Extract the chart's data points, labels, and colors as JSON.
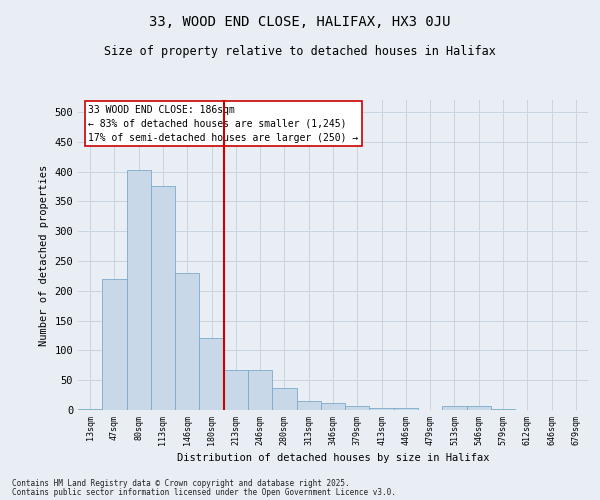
{
  "title": "33, WOOD END CLOSE, HALIFAX, HX3 0JU",
  "subtitle": "Size of property relative to detached houses in Halifax",
  "xlabel": "Distribution of detached houses by size in Halifax",
  "ylabel": "Number of detached properties",
  "bar_values": [
    2,
    220,
    403,
    375,
    230,
    120,
    67,
    67,
    37,
    15,
    12,
    6,
    3,
    3,
    0,
    6,
    6,
    2,
    0,
    0,
    0
  ],
  "bar_labels": [
    "13sqm",
    "47sqm",
    "80sqm",
    "113sqm",
    "146sqm",
    "180sqm",
    "213sqm",
    "246sqm",
    "280sqm",
    "313sqm",
    "346sqm",
    "379sqm",
    "413sqm",
    "446sqm",
    "479sqm",
    "513sqm",
    "546sqm",
    "579sqm",
    "612sqm",
    "646sqm",
    "679sqm"
  ],
  "bar_color": "#c8d8e8",
  "bar_edge_color": "#7aaac8",
  "grid_color": "#c8d4e0",
  "background_color": "#e8eef4",
  "vline_x_index": 5,
  "vline_color": "#cc0000",
  "annotation_text": "33 WOOD END CLOSE: 186sqm\n← 83% of detached houses are smaller (1,245)\n17% of semi-detached houses are larger (250) →",
  "annotation_box_color": "#ffffff",
  "annotation_border_color": "#cc0000",
  "ylim": [
    0,
    520
  ],
  "yticks": [
    0,
    50,
    100,
    150,
    200,
    250,
    300,
    350,
    400,
    450,
    500
  ],
  "footnote1": "Contains HM Land Registry data © Crown copyright and database right 2025.",
  "footnote2": "Contains public sector information licensed under the Open Government Licence v3.0."
}
